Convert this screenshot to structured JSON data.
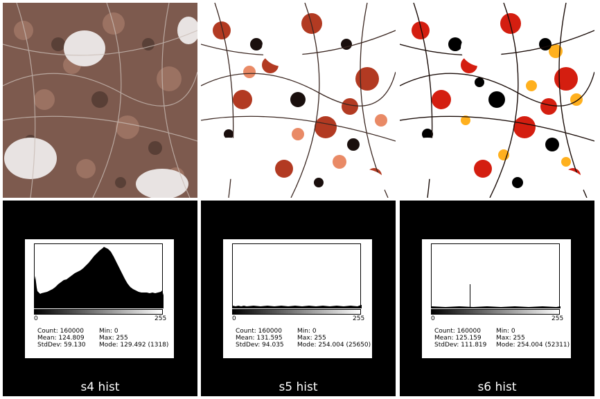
{
  "panels": [
    {
      "caption": "s4 hist",
      "photo_style": "natural",
      "tick_min": "0",
      "tick_max": "255",
      "stats": {
        "count": "Count: 160000",
        "mean": "Mean: 124.809",
        "stddev": "StdDev: 59.130",
        "min": "Min: 0",
        "max": "Max: 255",
        "mode": "Mode: 129.492 (1318)"
      }
    },
    {
      "caption": "s5 hist",
      "photo_style": "high-contrast",
      "tick_min": "0",
      "tick_max": "255",
      "stats": {
        "count": "Count: 160000",
        "mean": "Mean: 131.595",
        "stddev": "StdDev: 94.035",
        "min": "Min: 0",
        "max": "Max: 255",
        "mode": "Mode: 254.004 (25650)"
      }
    },
    {
      "caption": "s6 hist",
      "photo_style": "saturated",
      "tick_min": "0",
      "tick_max": "255",
      "stats": {
        "count": "Count: 160000",
        "mean": "Mean: 125.159",
        "stddev": "StdDev: 111.819",
        "min": "Min: 0",
        "max": "Max: 255",
        "mode": "Mode: 254.004 (52311)"
      }
    }
  ]
}
